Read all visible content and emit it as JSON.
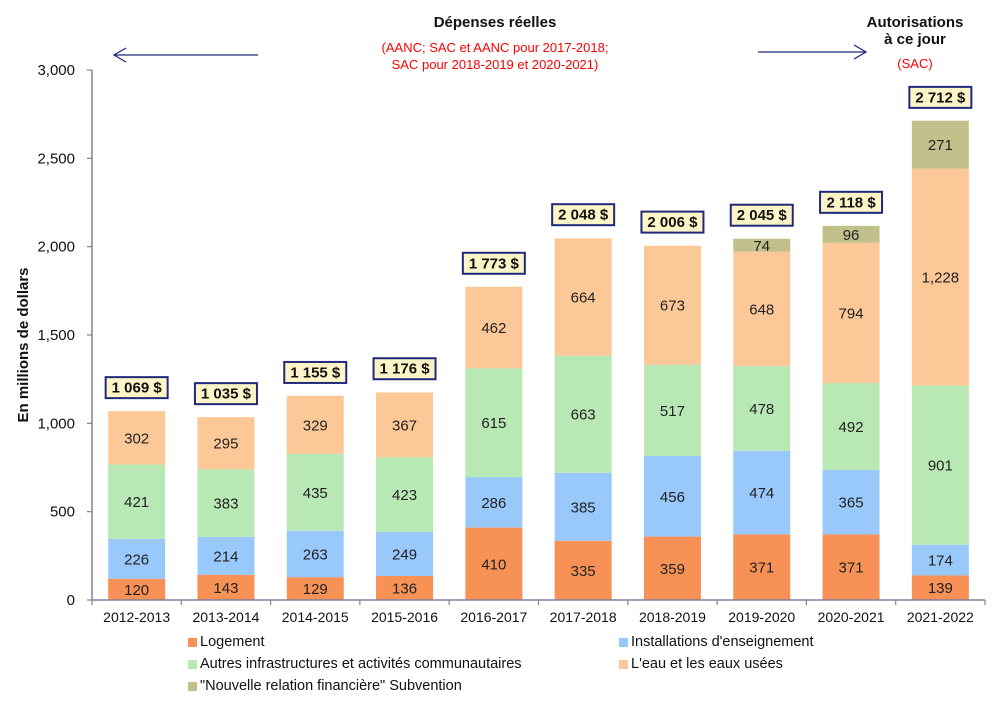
{
  "chart_data": {
    "type": "bar",
    "stacked": true,
    "ylabel": "En millions de dollars",
    "xlabel": "",
    "ylim": [
      0,
      3000
    ],
    "yticks": [
      0,
      500,
      1000,
      1500,
      2000,
      2500,
      3000
    ],
    "ytick_labels": [
      "0",
      "500",
      "1,000",
      "1,500",
      "2,000",
      "2,500",
      "3,000"
    ],
    "grid": false,
    "categories": [
      "2012-2013",
      "2013-2014",
      "2014-2015",
      "2015-2016",
      "2016-2017",
      "2017-2018",
      "2018-2019",
      "2019-2020",
      "2020-2021",
      "2021-2022"
    ],
    "series": [
      {
        "name": "Logement",
        "color": "#f79155",
        "values": [
          120,
          143,
          129,
          136,
          410,
          335,
          359,
          371,
          371,
          139
        ]
      },
      {
        "name": "Installations d'enseignement",
        "color": "#99c9fb",
        "values": [
          226,
          214,
          263,
          249,
          286,
          385,
          456,
          474,
          365,
          174
        ]
      },
      {
        "name": "Autres infrastructures et activités communautaires",
        "color": "#b8e8b4",
        "values": [
          421,
          383,
          435,
          423,
          615,
          663,
          517,
          478,
          492,
          901
        ]
      },
      {
        "name": "L'eau et les eaux usées",
        "color": "#fdc897",
        "values": [
          302,
          295,
          329,
          367,
          462,
          664,
          673,
          648,
          794,
          1228
        ]
      },
      {
        "name": "\"Nouvelle relation financière\" Subvention",
        "color": "#c2c08a",
        "values": [
          0,
          0,
          0,
          0,
          0,
          0,
          0,
          74,
          96,
          271
        ]
      }
    ],
    "value_labels": [
      [
        "120",
        "143",
        "129",
        "136",
        "410",
        "335",
        "359",
        "371",
        "371",
        "139"
      ],
      [
        "226",
        "214",
        "263",
        "249",
        "286",
        "385",
        "456",
        "474",
        "365",
        "174"
      ],
      [
        "421",
        "383",
        "435",
        "423",
        "615",
        "663",
        "517",
        "478",
        "492",
        "901"
      ],
      [
        "302",
        "295",
        "329",
        "367",
        "462",
        "664",
        "673",
        "648",
        "794",
        "1,228"
      ],
      [
        "",
        "",
        "",
        "",
        "",
        "",
        "",
        "74",
        "96",
        "271"
      ]
    ],
    "totals": [
      1069,
      1035,
      1155,
      1176,
      1773,
      2048,
      2006,
      2045,
      2118,
      2712
    ],
    "total_labels": [
      "1 069 $",
      "1 035 $",
      "1 155 $",
      "1 176 $",
      "1 773 $",
      "2 048 $",
      "2 006 $",
      "2 045 $",
      "2 118 $",
      "2 712 $"
    ],
    "legend": {
      "placement": "bottom",
      "entries": [
        "Logement",
        "Installations d'enseignement",
        "Autres infrastructures et activités communautaires",
        "L'eau et les eaux usées",
        "\"Nouvelle relation financière\" Subvention"
      ]
    },
    "annotations": {
      "actual_title": "Dépenses réelles",
      "actual_subtitle_1": "(AANC; SAC et AANC pour 2017-2018;",
      "actual_subtitle_2": "SAC pour 2018-2019 et 2020-2021)",
      "auth_title_1": "Autorisations",
      "auth_title_2": "à ce jour",
      "auth_subtitle": "(SAC)"
    }
  },
  "colors": {
    "axis": "#8080a0",
    "arrow": "#1f2a7a",
    "total_box_fill": "#fdf5c8",
    "total_box_border": "#1f2a7a",
    "annotation_red": "#ff0000"
  }
}
